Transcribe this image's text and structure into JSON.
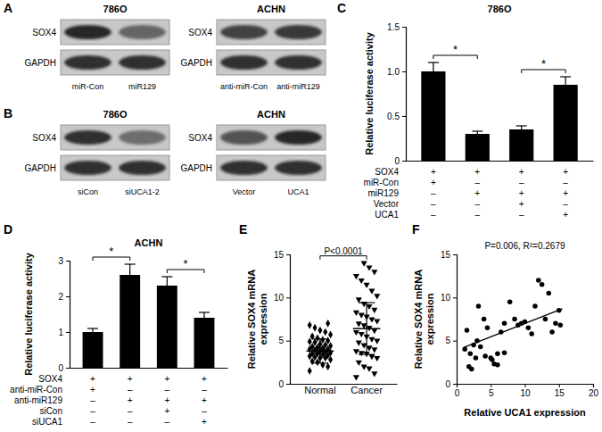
{
  "blot_panels": [
    {
      "panel": "A",
      "blots": [
        {
          "cell_line": "786O",
          "rows": [
            {
              "name": "SOX4",
              "intensity": [
                0.9,
                0.55
              ]
            },
            {
              "name": "GAPDH",
              "intensity": [
                0.85,
                0.85
              ]
            }
          ],
          "lanes": [
            "miR-Con",
            "miR129"
          ]
        },
        {
          "cell_line": "ACHN",
          "rows": [
            {
              "name": "SOX4",
              "intensity": [
                0.75,
                0.8
              ]
            },
            {
              "name": "GAPDH",
              "intensity": [
                0.85,
                0.85
              ]
            }
          ],
          "lanes": [
            "anti-miR-Con",
            "anti-miR129"
          ]
        }
      ]
    },
    {
      "panel": "B",
      "blots": [
        {
          "cell_line": "786O",
          "rows": [
            {
              "name": "SOX4",
              "intensity": [
                0.85,
                0.5
              ]
            },
            {
              "name": "GAPDH",
              "intensity": [
                0.85,
                0.85
              ]
            }
          ],
          "lanes": [
            "siCon",
            "siUCA1-2"
          ]
        },
        {
          "cell_line": "ACHN",
          "rows": [
            {
              "name": "SOX4",
              "intensity": [
                0.65,
                0.9
              ]
            },
            {
              "name": "GAPDH",
              "intensity": [
                0.85,
                0.85
              ]
            }
          ],
          "lanes": [
            "Vector",
            "UCA1"
          ]
        }
      ]
    }
  ],
  "chart_data": [
    {
      "panel": "C",
      "type": "bar",
      "title": "786O",
      "ylabel": "Relative luciferase activity",
      "categories": [
        null,
        null,
        null,
        null
      ],
      "values": [
        1.0,
        0.3,
        0.35,
        0.85
      ],
      "errors": [
        0.1,
        0.03,
        0.04,
        0.09
      ],
      "color": "#000000",
      "ylim": [
        0,
        1.5
      ],
      "yticks": [
        0,
        0.5,
        {
          "value": 1,
          "label": "1.0"
        },
        1.5
      ],
      "conditions": [
        {
          "name": "SOX4",
          "signs": [
            "+",
            "+",
            "+",
            "+"
          ]
        },
        {
          "name": "miR-Con",
          "signs": [
            "+",
            "–",
            "–",
            "–"
          ]
        },
        {
          "name": "miR129",
          "signs": [
            "–",
            "+",
            "+",
            "+"
          ]
        },
        {
          "name": "Vector",
          "signs": [
            "–",
            "–",
            "+",
            "–"
          ]
        },
        {
          "name": "UCA1",
          "signs": [
            "–",
            "–",
            "–",
            "+"
          ]
        }
      ],
      "significance": [
        {
          "between": [
            0,
            1
          ],
          "text": "*"
        },
        {
          "between": [
            2,
            3
          ],
          "text": "*"
        }
      ]
    },
    {
      "panel": "D",
      "type": "bar",
      "title": "ACHN",
      "ylabel": "Relative luciferase activity",
      "categories": [
        null,
        null,
        null,
        null
      ],
      "values": [
        1.0,
        2.6,
        2.3,
        1.4
      ],
      "errors": [
        0.1,
        0.3,
        0.25,
        0.15
      ],
      "color": "#000000",
      "ylim": [
        0,
        3
      ],
      "yticks": [
        0,
        1,
        2,
        3
      ],
      "conditions": [
        {
          "name": "SOX4",
          "signs": [
            "+",
            "+",
            "+",
            "+"
          ]
        },
        {
          "name": "anti-miR-Con",
          "signs": [
            "+",
            "–",
            "–",
            "–"
          ]
        },
        {
          "name": "anti-miR129",
          "signs": [
            "–",
            "+",
            "+",
            "+"
          ]
        },
        {
          "name": "siCon",
          "signs": [
            "–",
            "–",
            "+",
            "–"
          ]
        },
        {
          "name": "siUCA1",
          "signs": [
            "–",
            "–",
            "–",
            "+"
          ]
        }
      ],
      "significance": [
        {
          "between": [
            0,
            1
          ],
          "text": "*"
        },
        {
          "between": [
            2,
            3
          ],
          "text": "*"
        }
      ]
    },
    {
      "panel": "E",
      "type": "dot_plot",
      "ylabel": "Relative SOX4 mRNA expression",
      "categories": [
        "Normal",
        "Cancer"
      ],
      "color": "#000000",
      "ylim": [
        0,
        15
      ],
      "yticks": [
        0,
        5,
        10,
        15
      ],
      "groups": [
        {
          "marker": "diamond",
          "mean": 3.8,
          "sd": 1.4,
          "values": [
            1.5,
            2.0,
            2.2,
            2.5,
            2.6,
            2.8,
            3.0,
            3.0,
            3.1,
            3.2,
            3.3,
            3.4,
            3.5,
            3.5,
            3.6,
            3.7,
            3.8,
            3.9,
            4.0,
            4.0,
            4.1,
            4.2,
            4.3,
            4.4,
            4.5,
            4.6,
            4.8,
            4.9,
            5.0,
            5.1,
            5.3,
            5.5,
            5.7,
            6.0,
            6.2,
            6.5,
            6.8,
            7.0
          ]
        },
        {
          "marker": "triangle-down",
          "mean": 6.4,
          "sd": 3.0,
          "values": [
            0.8,
            1.2,
            1.8,
            2.0,
            2.5,
            3.0,
            3.2,
            3.5,
            3.6,
            3.8,
            4.0,
            4.2,
            4.5,
            4.8,
            5.0,
            5.2,
            5.5,
            5.8,
            6.0,
            6.2,
            6.5,
            6.8,
            7.0,
            7.3,
            7.5,
            7.8,
            8.0,
            8.3,
            8.6,
            9.0,
            9.3,
            9.8,
            10.2,
            10.8,
            11.5,
            12.0,
            12.5,
            13.0,
            13.5,
            14.0
          ]
        }
      ],
      "significance": [
        {
          "between": [
            0,
            1
          ],
          "text": "P<0.0001"
        }
      ]
    },
    {
      "panel": "F",
      "type": "scatter",
      "xlabel": "Relative UCA1 expression",
      "ylabel": "Relative SOX4 mRNA expression",
      "annotation": "P=0.006, R²=0.2679",
      "color": "#000000",
      "marker": "circle",
      "x": [
        1.2,
        1.5,
        1.8,
        2.0,
        2.2,
        2.5,
        2.8,
        3.0,
        3.2,
        3.5,
        4.0,
        4.2,
        4.5,
        5.0,
        5.2,
        5.5,
        6.0,
        6.0,
        6.5,
        7.0,
        7.0,
        7.8,
        8.5,
        9.0,
        9.5,
        10.0,
        10.5,
        11.0,
        11.5,
        12.0,
        12.5,
        13.0,
        13.5,
        14.0,
        14.5,
        15.0,
        15.2
      ],
      "values": [
        4.0,
        6.2,
        2.0,
        3.5,
        1.7,
        4.5,
        3.0,
        5.0,
        9.0,
        4.3,
        7.5,
        3.2,
        6.5,
        3.0,
        2.8,
        2.3,
        3.5,
        2.2,
        6.0,
        7.0,
        3.6,
        9.5,
        7.5,
        6.8,
        7.0,
        7.2,
        6.5,
        5.8,
        9.0,
        12.0,
        11.5,
        7.5,
        10.5,
        6.0,
        7.0,
        8.5,
        6.8
      ],
      "fit": {
        "x": [
          1,
          15.5
        ],
        "values": [
          4.2,
          8.7
        ]
      },
      "xlim": [
        0,
        20
      ],
      "xticks": [
        0,
        5,
        10,
        15,
        20
      ],
      "ylim": [
        0,
        15
      ],
      "yticks": [
        0,
        5,
        10,
        15
      ]
    }
  ]
}
